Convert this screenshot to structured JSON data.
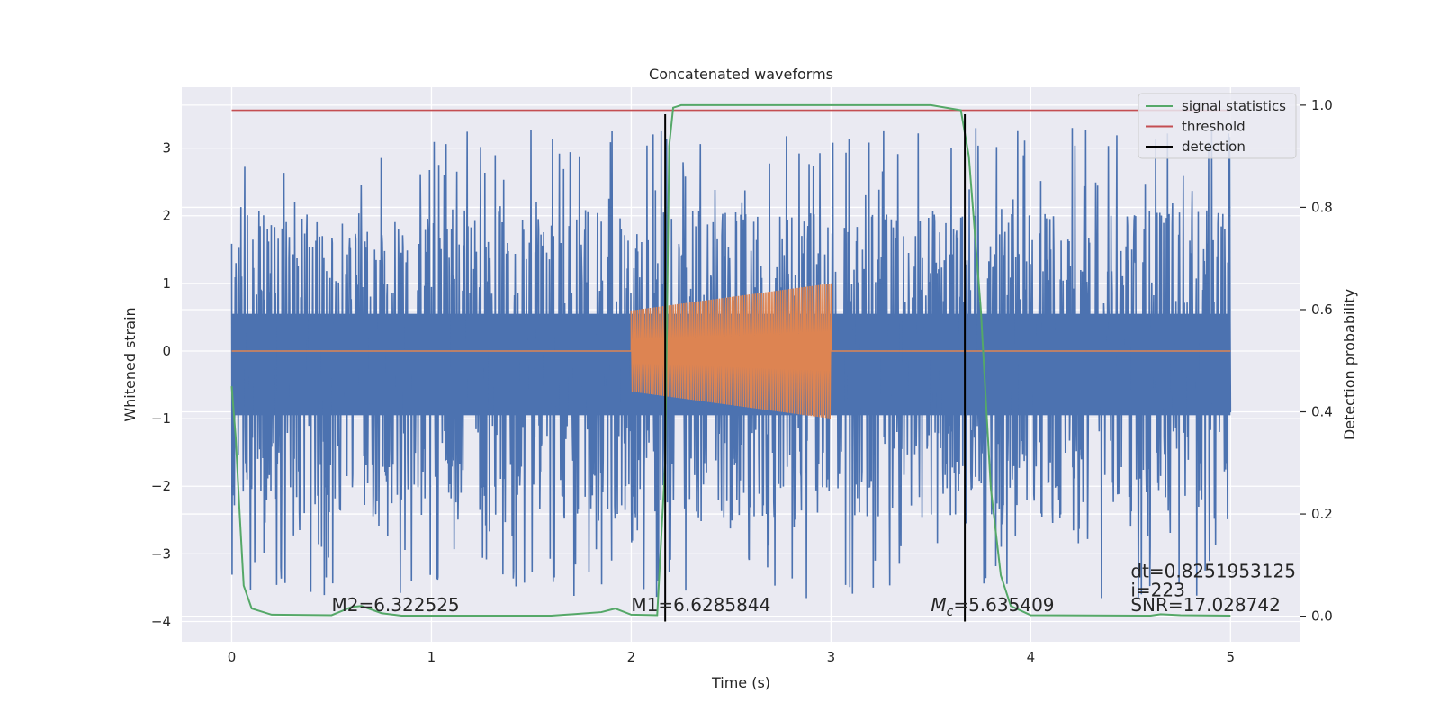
{
  "chart_data": {
    "type": "line",
    "title": "Concatenated waveforms",
    "xlabel": "Time (s)",
    "ylabel_left": "Whitened strain",
    "ylabel_right": "Detection probability",
    "xlim": [
      -0.25,
      5.35
    ],
    "ylim_left": [
      -4.3,
      3.9
    ],
    "ylim_right": [
      -0.05,
      1.035
    ],
    "xticks": [
      0,
      1,
      2,
      3,
      4,
      5
    ],
    "yticks_left": [
      -4,
      -3,
      -2,
      -1,
      0,
      1,
      2,
      3
    ],
    "yticks_right": [
      0.0,
      0.2,
      0.4,
      0.6,
      0.8,
      1.0
    ],
    "grid": true,
    "legend_position": "top-right",
    "colors": {
      "background": "#eaeaf2",
      "grid": "#ffffff",
      "strain": "#4c72b0",
      "template": "#dd8452",
      "statistic": "#55a868",
      "threshold": "#c44e52",
      "detection": "#000000"
    },
    "series": [
      {
        "name": "",
        "role": "whitened strain (noise)",
        "x_range": [
          0,
          5
        ],
        "core_band": [
          -0.95,
          0.55
        ],
        "peaks_note": "dense noise, spikes up to ~3.5 and down to ~-4"
      },
      {
        "name": "",
        "role": "injected chirp waveform",
        "x_range": [
          2.0,
          3.0
        ],
        "amplitude_start": 0.6,
        "amplitude_end": 1.0
      },
      {
        "name": "signal statistics",
        "points": [
          [
            0,
            0.45
          ],
          [
            0.02,
            0.35
          ],
          [
            0.04,
            0.2
          ],
          [
            0.06,
            0.06
          ],
          [
            0.1,
            0.015
          ],
          [
            0.2,
            0.003
          ],
          [
            0.5,
            0.002
          ],
          [
            0.6,
            0.018
          ],
          [
            0.65,
            0.02
          ],
          [
            0.75,
            0.006
          ],
          [
            0.85,
            0.001
          ],
          [
            1.6,
            0.001
          ],
          [
            1.85,
            0.008
          ],
          [
            1.92,
            0.015
          ],
          [
            2.0,
            0.003
          ],
          [
            2.13,
            0.002
          ],
          [
            2.17,
            0.3
          ],
          [
            2.19,
            0.92
          ],
          [
            2.21,
            0.995
          ],
          [
            2.25,
            1.0
          ],
          [
            3.5,
            1.0
          ],
          [
            3.65,
            0.99
          ],
          [
            3.69,
            0.9
          ],
          [
            3.75,
            0.6
          ],
          [
            3.8,
            0.25
          ],
          [
            3.85,
            0.08
          ],
          [
            3.9,
            0.02
          ],
          [
            4.0,
            0.002
          ],
          [
            4.6,
            0.001
          ],
          [
            4.65,
            0.004
          ],
          [
            4.75,
            0.002
          ],
          [
            5.0,
            0.001
          ]
        ]
      },
      {
        "name": "threshold",
        "value": 0.99
      },
      {
        "name": "detection",
        "x_values": [
          2.17,
          3.67
        ],
        "y_range": [
          -4.0,
          3.5
        ]
      }
    ],
    "annotations": [
      {
        "text": "M2=6.322525",
        "x": 0.5,
        "y": -3.85
      },
      {
        "text": "M1=6.6285844",
        "x": 2.0,
        "y": -3.85
      },
      {
        "text_main": "M",
        "text_sub": "c",
        "text_rest": "=5.635409",
        "x": 3.5,
        "y": -3.85
      },
      {
        "text": "dt=0.8251953125",
        "x": 4.5,
        "y": -3.35
      },
      {
        "text": " i=223",
        "x": 4.5,
        "y": -3.63
      },
      {
        "text": "SNR=17.028742",
        "x": 4.5,
        "y": -3.85
      }
    ]
  }
}
